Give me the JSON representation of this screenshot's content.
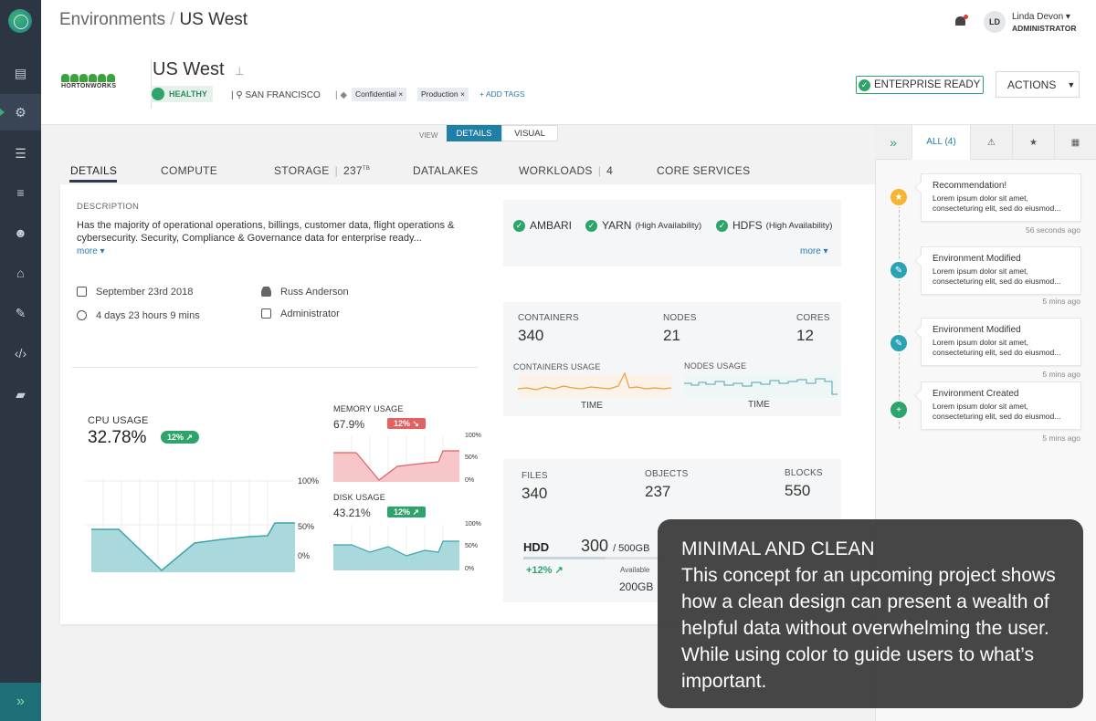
{
  "header": {
    "breadcrumb_root": "Environments",
    "breadcrumb_sep": "/",
    "breadcrumb_current": "US West",
    "user": {
      "initials": "LD",
      "name": "Linda Devon",
      "role": "ADMINISTRATOR"
    }
  },
  "sidebar": {
    "items": [
      "dashboard-icon",
      "clusters-icon",
      "database-icon",
      "list-icon",
      "users-icon",
      "store-icon",
      "wrench-icon",
      "code-icon",
      "book-icon"
    ],
    "expand": "»"
  },
  "environment": {
    "logo_text": "HORTONWORKS",
    "name": "US West",
    "status": "HEALTHY",
    "location": "SAN FRANCISCO",
    "tags": [
      "Confidential ×",
      "Production ×"
    ],
    "add_tags": "+ ADD TAGS",
    "enterprise_ready": "ENTERPRISE READY",
    "actions_label": "ACTIONS"
  },
  "view": {
    "label": "VIEW",
    "options": [
      "DETAILS",
      "VISUAL"
    ],
    "selected": "DETAILS"
  },
  "tabs": {
    "details": "DETAILS",
    "compute": "COMPUTE",
    "storage": "STORAGE",
    "storage_value": "237",
    "storage_unit": "TB",
    "datalakes": "DATALAKES",
    "workloads": "WORKLOADS",
    "workloads_count": "4",
    "core_services": "CORE SERVICES"
  },
  "details": {
    "description_label": "DESCRIPTION",
    "description": "Has the majority of operational operations, billings, customer data, flight operations & cybersecurity. Security, Compliance & Governance  data for enterprise ready...",
    "more": "more ▾",
    "date": "September 23rd 2018",
    "duration": "4 days 23 hours 9 mins",
    "owner": "Russ Anderson",
    "owner_role": "Administrator"
  },
  "services": {
    "items": [
      {
        "name": "AMBARI",
        "note": ""
      },
      {
        "name": "YARN",
        "note": "(High Availability)"
      },
      {
        "name": "HDFS",
        "note": "(High Availability)"
      }
    ],
    "more": "more ▾"
  },
  "compute_stats": {
    "containers_label": "CONTAINERS",
    "containers": "340",
    "nodes_label": "NODES",
    "nodes": "21",
    "cores_label": "CORES",
    "cores": "12",
    "containers_usage_label": "CONTAINERS USAGE",
    "nodes_usage_label": "NODES USAGE",
    "time_label": "TIME"
  },
  "storage_stats": {
    "files_label": "FILES",
    "files": "340",
    "objects_label": "OBJECTS",
    "objects": "237",
    "blocks_label": "BLOCKS",
    "blocks": "550",
    "hdd_label": "HDD",
    "hdd_used": "300",
    "hdd_total": "/ 500GB",
    "hdd_change": "+12% ↗",
    "available_label": "Available",
    "available": "200GB"
  },
  "usage": {
    "cpu_label": "CPU USAGE",
    "cpu_value": "32.78%",
    "cpu_badge": "12% ↗",
    "memory_label": "MEMORY USAGE",
    "memory_value": "67.9%",
    "memory_badge": "12% ↘",
    "disk_label": "DISK USAGE",
    "disk_value": "43.21%",
    "disk_badge": "12% ↗",
    "ticks_big": [
      "100%",
      "50%",
      "0%"
    ],
    "ticks_small": [
      "100%",
      "50%",
      "0%"
    ]
  },
  "activity": {
    "tabs": {
      "expand": "»",
      "all": "ALL (4)"
    },
    "items": [
      {
        "icon": "star-icon",
        "color": "#f2b632",
        "title": "Recommendation!",
        "body": "Lorem ipsum dolor sit amet, consecteturing elit, sed do eiusmod...",
        "time": "56 seconds ago"
      },
      {
        "icon": "edit-icon",
        "color": "#2aa3b5",
        "title": "Environment Modified",
        "body": "Lorem ipsum dolor sit amet, consecteturing elit, sed do eiusmod...",
        "time": "5 mins ago"
      },
      {
        "icon": "edit-icon",
        "color": "#2aa3b5",
        "title": "Environment Modified",
        "body": "Lorem ipsum dolor sit amet, consecteturing elit, sed do eiusmod...",
        "time": "5 mins ago"
      },
      {
        "icon": "calendar-add-icon",
        "color": "#2ea46b",
        "title": "Environment Created",
        "body": "Lorem ipsum dolor sit amet, consecteturing elit, sed do eiusmod...",
        "time": "5 mins ago"
      }
    ]
  },
  "overlay": {
    "title": "MINIMAL AND CLEAN",
    "body": "This concept for an upcoming project shows how a clean design can present a wealth of helpful data without overwhelming the user. While using color to guide users to what’s important."
  }
}
